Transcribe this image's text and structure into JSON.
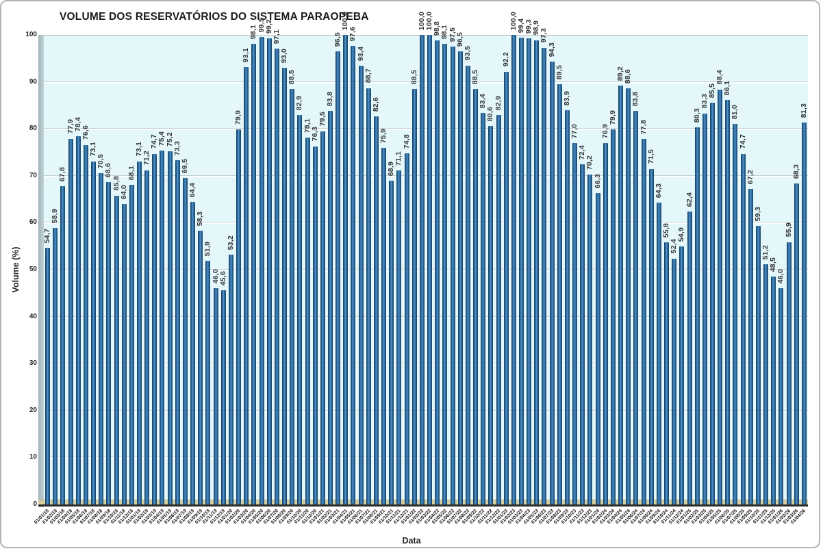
{
  "title": "VOLUME DOS RESERVATÓRIOS DO SISTEMA PARAOPEBA",
  "chart_data": {
    "type": "bar",
    "title": "VOLUME DOS RESERVATÓRIOS DO SISTEMA PARAOPEBA",
    "xlabel": "Data",
    "ylabel": "Volume (%)",
    "ylim": [
      0,
      100
    ],
    "yticks": [
      "0",
      "10",
      "20",
      "30",
      "40",
      "50",
      "60",
      "70",
      "80",
      "90",
      "100"
    ],
    "grid": true,
    "legend": "none",
    "categories": [
      "01/01/18",
      "01/02/18",
      "01/03/18",
      "01/04/18",
      "01/05/18",
      "01/06/18",
      "01/07/18",
      "01/08/18",
      "01/09/18",
      "01/10/18",
      "01/11/18",
      "01/12/18",
      "01/01/19",
      "01/02/19",
      "01/03/19",
      "01/04/19",
      "01/05/19",
      "01/06/19",
      "01/07/19",
      "01/08/19",
      "01/09/19",
      "01/10/19",
      "01/11/19",
      "01/12/19",
      "01/01/20",
      "01/02/20",
      "01/03/20",
      "01/04/20",
      "01/05/20",
      "01/06/20",
      "01/07/20",
      "01/08/20",
      "01/09/20",
      "01/10/20",
      "01/11/20",
      "01/12/20",
      "01/01/21",
      "01/02/21",
      "01/03/21",
      "01/04/21",
      "01/05/21",
      "01/06/21",
      "01/07/21",
      "01/08/21",
      "01/09/21",
      "01/10/21",
      "01/11/21",
      "01/12/21",
      "01/01/22",
      "01/02/22",
      "01/03/22",
      "01/04/22",
      "01/05/22",
      "01/06/22",
      "01/07/22",
      "01/08/22",
      "01/09/22",
      "01/10/22",
      "01/11/22",
      "01/12/22",
      "01/01/23",
      "01/02/23",
      "01/03/23",
      "01/04/23",
      "01/05/23",
      "01/06/23",
      "01/07/23",
      "01/08/23",
      "01/09/23",
      "01/10/23",
      "01/11/23",
      "01/12/23",
      "01/01/24",
      "01/02/24",
      "01/03/24",
      "01/04/24",
      "01/05/24",
      "01/06/24",
      "01/07/24",
      "01/08/24",
      "01/09/24",
      "01/10/24",
      "01/11/24",
      "01/12/24",
      "01/01/25",
      "01/02/25",
      "01/03/25",
      "01/04/25",
      "01/05/25",
      "01/06/25",
      "01/07/25",
      "01/08/25",
      "01/09/25",
      "01/10/25",
      "01/11/25",
      "01/12/25",
      "01/01/26",
      "01/02/26",
      "01/03/26",
      "01/04/26"
    ],
    "values": [
      54.7,
      58.9,
      67.8,
      77.9,
      78.4,
      76.6,
      73.1,
      70.5,
      68.6,
      65.8,
      64.0,
      68.1,
      73.1,
      71.2,
      74.7,
      75.4,
      75.2,
      73.3,
      69.5,
      64.4,
      58.3,
      51.9,
      46.0,
      45.6,
      53.2,
      79.9,
      93.1,
      98.1,
      99.5,
      99.2,
      97.1,
      93.0,
      88.5,
      82.9,
      78.1,
      76.3,
      79.5,
      83.8,
      96.5,
      100.0,
      97.6,
      93.4,
      88.7,
      82.6,
      75.9,
      68.9,
      71.1,
      74.8,
      88.5,
      100.0,
      100.0,
      98.8,
      98.1,
      97.5,
      96.5,
      93.5,
      88.5,
      83.4,
      80.6,
      82.9,
      92.2,
      100.0,
      99.4,
      99.3,
      98.9,
      97.3,
      94.3,
      89.5,
      83.9,
      77.0,
      72.4,
      70.2,
      66.3,
      76.9,
      79.9,
      89.2,
      88.6,
      83.8,
      77.8,
      71.5,
      64.3,
      55.8,
      52.4,
      54.9,
      62.4,
      80.3,
      83.3,
      85.5,
      88.4,
      86.1,
      81.0,
      74.7,
      67.2,
      59.3,
      51.2,
      48.5,
      46.0,
      55.9,
      68.3,
      81.3
    ],
    "value_labels": [
      "54,7",
      "58,9",
      "67,8",
      "77,9",
      "78,4",
      "76,6",
      "73,1",
      "70,5",
      "68,6",
      "65,8",
      "64,0",
      "68,1",
      "73,1",
      "71,2",
      "74,7",
      "75,4",
      "75,2",
      "73,3",
      "69,5",
      "64,4",
      "58,3",
      "51,9",
      "46,0",
      "45,6",
      "53,2",
      "79,9",
      "93,1",
      "98,1",
      "99,5",
      "99,2",
      "97,1",
      "93,0",
      "88,5",
      "82,9",
      "78,1",
      "76,3",
      "79,5",
      "83,8",
      "96,5",
      "100,0",
      "97,6",
      "93,4",
      "88,7",
      "82,6",
      "75,9",
      "68,9",
      "71,1",
      "74,8",
      "88,5",
      "100,0",
      "100,0",
      "98,8",
      "98,1",
      "97,5",
      "96,5",
      "93,5",
      "88,5",
      "83,4",
      "80,6",
      "82,9",
      "92,2",
      "100,0",
      "99,4",
      "99,3",
      "98,9",
      "97,3",
      "94,3",
      "89,5",
      "83,9",
      "77,0",
      "72,4",
      "70,2",
      "66,3",
      "76,9",
      "79,9",
      "89,2",
      "88,6",
      "83,8",
      "77,8",
      "71,5",
      "64,3",
      "55,8",
      "52,4",
      "54,9",
      "62,4",
      "80,3",
      "83,3",
      "85,5",
      "88,4",
      "86,1",
      "81,0",
      "74,7",
      "67,2",
      "59,3",
      "51,2",
      "48,5",
      "46,0",
      "55,9",
      "68,3",
      "81,3"
    ],
    "colors": {
      "bar_fill": "#2E6DA4",
      "bar_edge": "#16405F",
      "plot_bg": "#E4F8FC",
      "wall": "#AFC4CA",
      "floor": "#D8CFA0",
      "gridline": "#C4CFD1",
      "text": "#262626"
    }
  }
}
